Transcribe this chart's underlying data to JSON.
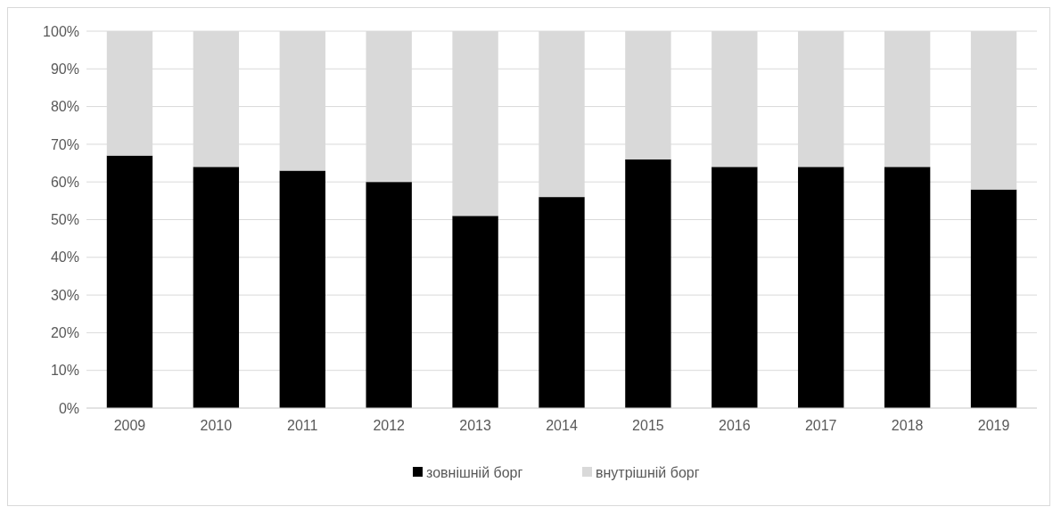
{
  "chart_data": {
    "type": "bar",
    "stacked": true,
    "categories": [
      "2009",
      "2010",
      "2011",
      "2012",
      "2013",
      "2014",
      "2015",
      "2016",
      "2017",
      "2018",
      "2019"
    ],
    "series": [
      {
        "name": "зовнішній борг",
        "color": "#000000",
        "values": [
          67,
          64,
          63,
          60,
          51,
          56,
          66,
          64,
          64,
          64,
          58
        ]
      },
      {
        "name": "внутрішній борг",
        "color": "#d9d9d9",
        "values": [
          33,
          36,
          37,
          40,
          49,
          44,
          34,
          36,
          36,
          36,
          42
        ]
      }
    ],
    "ylim": [
      0,
      100
    ],
    "yticks": [
      {
        "value": 0,
        "label": "0%"
      },
      {
        "value": 10,
        "label": "10%"
      },
      {
        "value": 20,
        "label": "20%"
      },
      {
        "value": 30,
        "label": "30%"
      },
      {
        "value": 40,
        "label": "40%"
      },
      {
        "value": 50,
        "label": "50%"
      },
      {
        "value": 60,
        "label": "60%"
      },
      {
        "value": 70,
        "label": "70%"
      },
      {
        "value": 80,
        "label": "80%"
      },
      {
        "value": 90,
        "label": "90%"
      },
      {
        "value": 100,
        "label": "100%"
      }
    ],
    "grid": "y",
    "legend": "bottom"
  }
}
